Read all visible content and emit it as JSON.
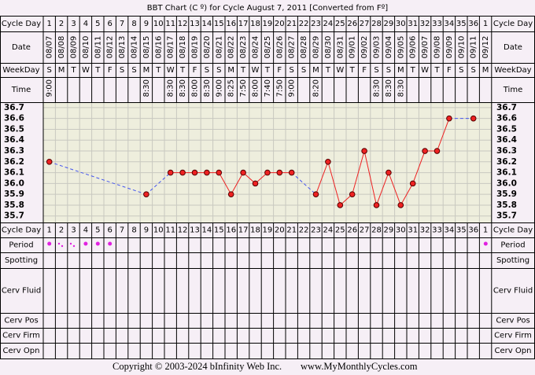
{
  "title": "BBT Chart (C º) for Cycle August 7, 2011  [Converted from Fº]",
  "row_labels": {
    "cycle_day": "Cycle Day",
    "date": "Date",
    "weekday": "WeekDay",
    "time": "Time",
    "period": "Period",
    "spotting": "Spotting",
    "cerv_fluid": "Cerv Fluid",
    "cerv_pos": "Cerv Pos",
    "cerv_firm": "Cerv Firm",
    "cerv_opn": "Cerv Opn"
  },
  "columns": {
    "dates": [
      "08/07",
      "08/08",
      "08/09",
      "08/10",
      "08/11",
      "08/12",
      "08/13",
      "08/14",
      "08/15",
      "08/16",
      "08/17",
      "08/18",
      "08/19",
      "08/20",
      "08/21",
      "08/22",
      "08/23",
      "08/24",
      "08/25",
      "08/26",
      "08/27",
      "08/28",
      "08/29",
      "08/30",
      "08/31",
      "09/01",
      "09/02",
      "09/03",
      "09/04",
      "09/05",
      "09/06",
      "09/07",
      "09/08",
      "09/09",
      "09/10",
      "09/11",
      "09/12"
    ],
    "weekdays": [
      "S",
      "M",
      "T",
      "W",
      "T",
      "F",
      "S",
      "S",
      "M",
      "T",
      "W",
      "T",
      "F",
      "S",
      "S",
      "M",
      "T",
      "W",
      "T",
      "F",
      "S",
      "S",
      "M",
      "T",
      "W",
      "T",
      "F",
      "S",
      "S",
      "M",
      "T",
      "W",
      "T",
      "F",
      "S",
      "S",
      "M"
    ],
    "times": [
      "9:00",
      null,
      null,
      null,
      null,
      null,
      null,
      null,
      "8:30",
      null,
      "8:30",
      "8:30",
      "8:00",
      "8:30",
      "9:00",
      "8:25",
      "7:50",
      "8:00",
      "7:40",
      "7:50",
      "9:00",
      null,
      "8:20",
      null,
      null,
      null,
      null,
      "8:30",
      "8:30",
      "8:30",
      null,
      null,
      null,
      null,
      null,
      null,
      null
    ]
  },
  "chart_data": {
    "type": "line",
    "categories": [
      1,
      2,
      3,
      4,
      5,
      6,
      7,
      8,
      9,
      10,
      11,
      12,
      13,
      14,
      15,
      16,
      17,
      18,
      19,
      20,
      21,
      22,
      23,
      24,
      25,
      26,
      27,
      28,
      29,
      30,
      31,
      32,
      33,
      34,
      35,
      36,
      1
    ],
    "values": [
      36.2,
      null,
      null,
      null,
      null,
      null,
      null,
      null,
      35.9,
      null,
      36.1,
      36.1,
      36.1,
      36.1,
      36.1,
      35.9,
      36.1,
      36.0,
      36.1,
      36.1,
      36.1,
      null,
      35.9,
      36.2,
      35.8,
      35.9,
      36.3,
      35.8,
      36.1,
      35.8,
      36.0,
      36.3,
      36.3,
      36.6,
      null,
      36.6,
      null
    ],
    "color": "#ee2222",
    "ylim": [
      35.64,
      36.75
    ],
    "yticks": [
      36.7,
      36.6,
      36.5,
      36.4,
      36.3,
      36.2,
      36.1,
      {
        "value": 36.0,
        "label": "36.0"
      },
      35.9,
      35.8,
      35.7
    ],
    "grid": true
  }
}
